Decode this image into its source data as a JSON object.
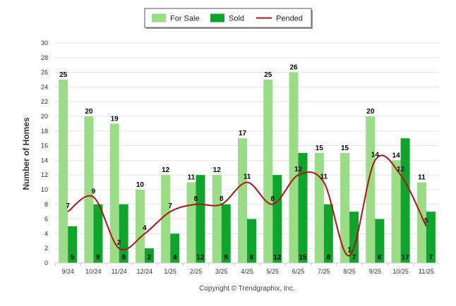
{
  "chart_data": {
    "type": "bar",
    "ylabel": "Number of Homes",
    "ylim": [
      0,
      30
    ],
    "ytick_step": 2,
    "grid": true,
    "legend_position": "top-center",
    "categories": [
      "9/24",
      "10/24",
      "11/24",
      "12/24",
      "1/25",
      "2/25",
      "3/25",
      "4/25",
      "5/25",
      "6/25",
      "7/25",
      "8/25",
      "9/25",
      "10/25",
      "11/25"
    ],
    "series": [
      {
        "name": "For Sale",
        "kind": "bar",
        "color": "#9bdc87",
        "values": [
          25,
          20,
          19,
          10,
          12,
          11,
          12,
          17,
          25,
          26,
          15,
          15,
          20,
          14,
          11
        ]
      },
      {
        "name": "Sold",
        "kind": "bar",
        "color": "#0fa52d",
        "values": [
          5,
          8,
          8,
          2,
          4,
          12,
          8,
          6,
          12,
          15,
          8,
          7,
          6,
          17,
          7
        ]
      },
      {
        "name": "Pended",
        "kind": "line",
        "color": "#b01414",
        "values": [
          7,
          9,
          2,
          4,
          7,
          8,
          8,
          11,
          8,
          12,
          11,
          1,
          14,
          12,
          5
        ]
      }
    ]
  },
  "footer": {
    "credit": "Copyright © Trendgraphix, Inc."
  }
}
